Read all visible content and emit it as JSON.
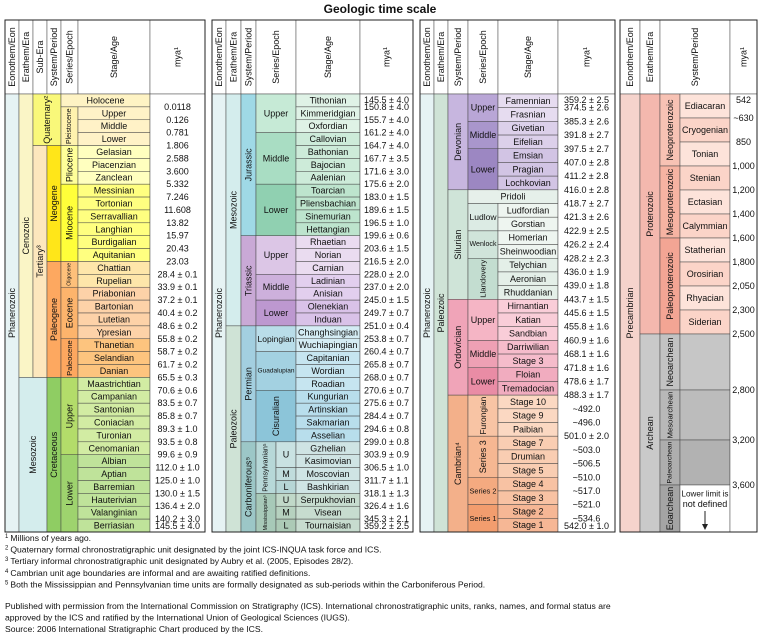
{
  "title": "Geologic time scale",
  "panels": [
    {
      "headers": [
        "Eonothem/Eon",
        "Erathem/Era",
        "Sub-Era",
        "System/Period",
        "Series/Epoch",
        "Stage/Age",
        "mya¹"
      ],
      "eons": [
        "Phanerozoic"
      ],
      "eras": [
        "Cenozoic",
        "Mesozoic"
      ],
      "suberas": [
        "Quaternary²",
        "Tertiary³"
      ],
      "periods": [
        "Neogene",
        "Paleogene",
        "Cretaceous"
      ],
      "epochs": [
        "Holocene",
        "Pleistocene",
        "Pliocene",
        "Miocene",
        "Oligocene",
        "Eocene",
        "Paleocene",
        "Upper",
        "Lower"
      ],
      "stages": [
        "Upper",
        "Middle",
        "Lower",
        "Gelasian",
        "Piacenzian",
        "Zanclean",
        "Messinian",
        "Tortonian",
        "Serravallian",
        "Langhian",
        "Burdigalian",
        "Aquitanian",
        "Chattian",
        "Rupelian",
        "Priabonian",
        "Bartonian",
        "Lutetian",
        "Ypresian",
        "Thanetian",
        "Selandian",
        "Danian",
        "Maastrichtian",
        "Campanian",
        "Santonian",
        "Coniacian",
        "Turonian",
        "Cenomanian",
        "Albian",
        "Aptian",
        "Barremian",
        "Hauterivian",
        "Valanginian",
        "Berriasian"
      ],
      "mya": [
        "0.0118",
        "0.126",
        "0.781",
        "1.806",
        "2.588",
        "3.600",
        "5.332",
        "7.246",
        "11.608",
        "13.82",
        "15.97",
        "20.43",
        "23.03",
        "28.4 ± 0.1",
        "33.9 ± 0.1",
        "37.2 ± 0.1",
        "40.4 ± 0.2",
        "48.6 ± 0.2",
        "55.8 ± 0.2",
        "58.7 ± 0.2",
        "61.7 ± 0.2",
        "65.5 ± 0.3",
        "70.6 ± 0.6",
        "83.5 ± 0.7",
        "85.8 ± 0.7",
        "89.3 ± 1.0",
        "93.5 ± 0.8",
        "99.6 ± 0.9",
        "112.0 ± 1.0",
        "125.0 ± 1.0",
        "130.0 ± 1.5",
        "136.4 ± 2.0",
        "140.2 ± 3.0",
        "145.5 ± 4.0"
      ]
    },
    {
      "headers": [
        "Eonothem/Eon",
        "Erathem/Era",
        "System/Period",
        "Series/Epoch",
        "Stage/Age",
        "mya¹"
      ],
      "eons": [
        "Phanerozoic"
      ],
      "eras": [
        "Mesozoic",
        "Paleozoic"
      ],
      "periods": [
        "Jurassic",
        "Triassic",
        "Permian",
        "Carboniferous⁵"
      ],
      "epochs": [
        "Upper",
        "Middle",
        "Lower",
        "Upper",
        "Middle",
        "Lower",
        "Lopingian",
        "Guadalupian",
        "Cisuralian"
      ],
      "subperiods": [
        "Pennsylvanian⁵",
        "Mississippian⁵"
      ],
      "subepochs": [
        "U",
        "M",
        "L",
        "U",
        "M",
        "L"
      ],
      "stages": [
        "Tithonian",
        "Kimmeridgian",
        "Oxfordian",
        "Callovian",
        "Bathonian",
        "Bajocian",
        "Aalenian",
        "Toarcian",
        "Pliensbachian",
        "Sinemurian",
        "Hettangian",
        "Rhaetian",
        "Norian",
        "Carnian",
        "Ladinian",
        "Anisian",
        "Olenekian",
        "Induan",
        "Changhsingian",
        "Wuchiapingian",
        "Capitanian",
        "Wordian",
        "Roadian",
        "Kungurian",
        "Artinskian",
        "Sakmarian",
        "Asselian",
        "Gzhelian",
        "Kasimovian",
        "Moscovian",
        "Bashkirian",
        "Serpukhovian",
        "Visean",
        "Tournaisian"
      ],
      "mya": [
        "145.5 ± 4.0",
        "150.8 ± 4.0",
        "155.7 ± 4.0",
        "161.2 ± 4.0",
        "164.7 ± 4.0",
        "167.7 ± 3.5",
        "171.6 ± 3.0",
        "175.6 ± 2.0",
        "183.0 ± 1.5",
        "189.6 ± 1.5",
        "196.5 ± 1.0",
        "199.6 ± 0.6",
        "203.6 ± 1.5",
        "216.5 ± 2.0",
        "228.0 ± 2.0",
        "237.0 ± 2.0",
        "245.0 ± 1.5",
        "249.7 ± 0.7",
        "251.0 ± 0.4",
        "253.8 ± 0.7",
        "260.4 ± 0.7",
        "265.8 ± 0.7",
        "268.0 ± 0.7",
        "270.6 ± 0.7",
        "275.6 ± 0.7",
        "284.4 ± 0.7",
        "294.6 ± 0.8",
        "299.0 ± 0.8",
        "303.9 ± 0.9",
        "306.5 ± 1.0",
        "311.7 ± 1.1",
        "318.1 ± 1.3",
        "326.4 ± 1.6",
        "345.3 ± 2.1",
        "359.2 ± 2.5"
      ]
    },
    {
      "headers": [
        "Eonothem/Eon",
        "Erathem/Era",
        "System/Period",
        "Series/Epoch",
        "Stage/Age",
        "mya¹"
      ],
      "eons": [
        "Phanerozoic"
      ],
      "eras": [
        "Paleozoic"
      ],
      "periods": [
        "Devonian",
        "Silurian",
        "Ordovician",
        "Cambrian⁴"
      ],
      "epochs": [
        "Upper",
        "Middle",
        "Lower",
        "Pridoli",
        "Ludlow",
        "Wenlock",
        "Llandovery",
        "Upper",
        "Middle",
        "Lower",
        "Furongian",
        "Series 3",
        "Series 2",
        "Series 1"
      ],
      "stages": [
        "Famennian",
        "Frasnian",
        "Givetian",
        "Eifelian",
        "Emsian",
        "Pragian",
        "Lochkovian",
        "Ludfordian",
        "Gorstian",
        "Homerian",
        "Sheinwoodian",
        "Telychian",
        "Aeronian",
        "Rhuddanian",
        "Hirnantian",
        "Katian",
        "Sandbian",
        "Darriwilian",
        "Stage 3",
        "Floian",
        "Tremadocian",
        "Stage 10",
        "Stage 9",
        "Paibian",
        "Stage 7",
        "Drumian",
        "Stage 5",
        "Stage 4",
        "Stage 3",
        "Stage 2",
        "Stage 1"
      ],
      "mya": [
        "359.2 ± 2.5",
        "374.5 ± 2.6",
        "385.3 ± 2.6",
        "391.8 ± 2.7",
        "397.5 ± 2.7",
        "407.0 ± 2.8",
        "411.2 ± 2.8",
        "416.0 ± 2.8",
        "418.7 ± 2.7",
        "421.3 ± 2.6",
        "422.9 ± 2.5",
        "426.2 ± 2.4",
        "428.2 ± 2.3",
        "436.0 ± 1.9",
        "439.0 ± 1.8",
        "443.7 ± 1.5",
        "445.6 ± 1.5",
        "455.8 ± 1.6",
        "460.9 ± 1.6",
        "468.1 ± 1.6",
        "471.8 ± 1.6",
        "478.6 ± 1.7",
        "488.3 ± 1.7",
        "~492.0",
        "~496.0",
        "501.0 ± 2.0",
        "~503.0",
        "~506.5",
        "~510.0",
        "~517.0",
        "~521.0",
        "~534.6",
        "542.0 ± 1.0"
      ]
    },
    {
      "headers": [
        "Eonothem/Eon",
        "Erathem/Era",
        "System/Period",
        "mya¹"
      ],
      "eons": [
        "Precambrian"
      ],
      "eonothems": [
        "Proterozoic",
        "Archean"
      ],
      "eras": [
        "Neoproterozoic",
        "Mesoproterozoic",
        "Paleoproterozoic",
        "Neoarchean",
        "Mesoarchean",
        "Paleoarchean",
        "Eoarchean"
      ],
      "periods": [
        "Ediacaran",
        "Cryogenian",
        "Tonian",
        "Stenian",
        "Ectasian",
        "Calymmian",
        "Statherian",
        "Orosirian",
        "Rhyacian",
        "Siderian"
      ],
      "note": [
        "Lower limit is",
        "not defined"
      ],
      "mya": [
        "542",
        "~630",
        "850",
        "1,000",
        "1,200",
        "1,400",
        "1,600",
        "1,800",
        "2,050",
        "2,300",
        "2,500",
        "2,800",
        "3,200",
        "3,600"
      ]
    }
  ],
  "footnotes": [
    {
      "mark": "1",
      "text": "Millions of years ago."
    },
    {
      "mark": "2",
      "text": "Quaternary formal chronostratigraphic unit designated by the joint ICS-INQUA task force and ICS."
    },
    {
      "mark": "3",
      "text": "Tertiary informal chronostratigraphic unit designated by Aubry et al. (2005, Episodes 28/2)."
    },
    {
      "mark": "4",
      "text": "Cambrian unit age boundaries are informal and are awaiting ratified definitions."
    },
    {
      "mark": "5",
      "text": "Both the Mississippian and Pennsylvanian time units are formally designated as sub-periods within the Carboniferous Period."
    }
  ],
  "credits": [
    "Published with permission from the International Commission on Stratigraphy (ICS). International chronostratigraphic units, ranks, names, and formal status are",
    "approved by the ICS and ratified by the International Union of Geological Sciences (IUGS).",
    "Source: 2006 International Stratigraphic Chart produced by the ICS."
  ]
}
